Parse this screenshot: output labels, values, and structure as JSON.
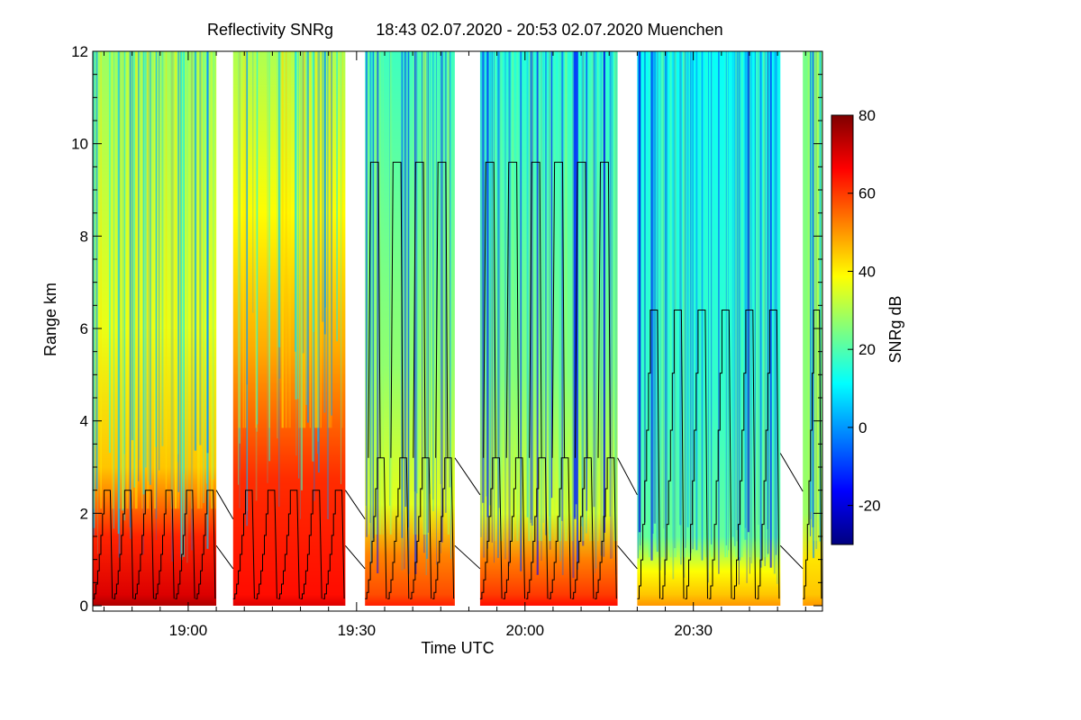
{
  "chart_data": {
    "type": "heatmap",
    "title": "Reflectivity SNRg",
    "subtitle": "18:43 02.07.2020 - 20:53 02.07.2020 Muenchen",
    "xlabel": "Time UTC",
    "ylabel": "Range km",
    "xlim_minutes_utc": [
      1123,
      1253
    ],
    "x_ticks": [
      {
        "minute": 1140,
        "label": "19:00"
      },
      {
        "minute": 1170,
        "label": "19:30"
      },
      {
        "minute": 1200,
        "label": "20:00"
      },
      {
        "minute": 1230,
        "label": "20:30"
      }
    ],
    "ylim": [
      0,
      12
    ],
    "y_ticks": [
      0,
      2,
      4,
      6,
      8,
      10,
      12
    ],
    "colorbar": {
      "label": "SNRg dB",
      "range": [
        -30,
        80
      ],
      "ticks": [
        -20,
        0,
        20,
        40,
        60,
        80
      ],
      "colormap": [
        "#00007f",
        "#0000ff",
        "#007fff",
        "#00ffff",
        "#7fff7f",
        "#ffff00",
        "#ff7f00",
        "#ff0000",
        "#7f0000"
      ]
    },
    "data_blocks": [
      {
        "start": 1123.0,
        "end": 1145.0,
        "snr_low": 70,
        "snr_mid": 45,
        "snr_high": 28,
        "transition_km": 3.0,
        "cycles": 6,
        "scan_top_km": 2.5
      },
      {
        "start": 1148.0,
        "end": 1168.0,
        "snr_low": 65,
        "snr_mid": 48,
        "snr_high": 30,
        "transition_km": 5.5,
        "cycles": 5,
        "scan_top_km": 2.5
      },
      {
        "start": 1171.5,
        "end": 1187.5,
        "snr_low": 58,
        "snr_mid": 36,
        "snr_high": 18,
        "transition_km": 2.2,
        "cycles": 4,
        "scan_top_km": 3.2,
        "second_top_km": 9.6
      },
      {
        "start": 1192.0,
        "end": 1216.5,
        "snr_low": 60,
        "snr_mid": 35,
        "snr_high": 15,
        "transition_km": 2.0,
        "cycles": 6,
        "scan_top_km": 3.2,
        "second_top_km": 9.6
      },
      {
        "start": 1220.0,
        "end": 1245.5,
        "snr_low": 45,
        "snr_mid": 22,
        "snr_high": 12,
        "transition_km": 1.5,
        "cycles": 6,
        "scan_top_km": 6.4
      },
      {
        "start": 1249.5,
        "end": 1253.0,
        "snr_low": 45,
        "snr_mid": 28,
        "snr_high": 24,
        "transition_km": 2.0,
        "cycles": 1,
        "scan_top_km": 6.4
      }
    ]
  }
}
